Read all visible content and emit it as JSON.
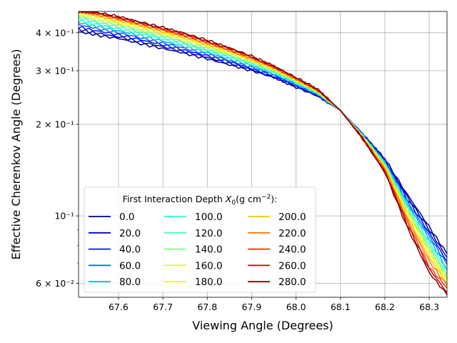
{
  "chart_data": {
    "type": "line",
    "title": "",
    "xlabel": "Viewing Angle (Degrees)",
    "ylabel": "Effective Cherenkov Angle (Degrees)",
    "xlim": [
      67.51,
      68.34
    ],
    "ylim": [
      0.054,
      0.47
    ],
    "yscale": "log",
    "grid": true,
    "x_ticks": [
      "67.6",
      "67.7",
      "67.8",
      "67.9",
      "68.0",
      "68.1",
      "68.2",
      "68.3"
    ],
    "y_major_ticks": [
      "6 × 10⁻²",
      "10⁻¹",
      "2 × 10⁻¹",
      "3 × 10⁻¹",
      "4 × 10⁻¹"
    ],
    "legend": {
      "title": "First Interaction Depth X₀(g cm⁻²):",
      "title_prefix": "First Interaction Depth ",
      "title_var": "X",
      "title_sub": "0",
      "title_paren": "(g cm",
      "title_sup": "−2",
      "title_suffix": "):",
      "placement": "lower-left",
      "ncol": 3
    },
    "x": [
      67.51,
      67.55,
      67.6,
      67.65,
      67.7,
      67.75,
      67.8,
      67.85,
      67.9,
      67.95,
      68.0,
      68.05,
      68.1,
      68.15,
      68.2,
      68.25,
      68.3,
      68.34
    ],
    "series": [
      {
        "name": "0.0",
        "color": "#00007f",
        "values": [
          0.403,
          0.393,
          0.383,
          0.368,
          0.355,
          0.342,
          0.328,
          0.314,
          0.3,
          0.285,
          0.265,
          0.247,
          0.222,
          0.186,
          0.154,
          0.118,
          0.092,
          0.075
        ]
      },
      {
        "name": "20.0",
        "color": "#0000c8",
        "values": [
          0.41,
          0.399,
          0.388,
          0.373,
          0.36,
          0.346,
          0.332,
          0.317,
          0.302,
          0.286,
          0.266,
          0.248,
          0.222,
          0.186,
          0.153,
          0.116,
          0.09,
          0.073
        ]
      },
      {
        "name": "40.0",
        "color": "#0010ff",
        "values": [
          0.418,
          0.406,
          0.394,
          0.379,
          0.365,
          0.35,
          0.336,
          0.321,
          0.305,
          0.289,
          0.268,
          0.249,
          0.222,
          0.185,
          0.152,
          0.114,
          0.088,
          0.071
        ]
      },
      {
        "name": "60.0",
        "color": "#0060ff",
        "values": [
          0.425,
          0.413,
          0.4,
          0.385,
          0.37,
          0.355,
          0.34,
          0.324,
          0.308,
          0.291,
          0.27,
          0.25,
          0.222,
          0.185,
          0.151,
          0.112,
          0.086,
          0.069
        ]
      },
      {
        "name": "80.0",
        "color": "#00b0ff",
        "values": [
          0.432,
          0.42,
          0.406,
          0.391,
          0.375,
          0.36,
          0.344,
          0.328,
          0.311,
          0.293,
          0.272,
          0.251,
          0.222,
          0.184,
          0.15,
          0.11,
          0.084,
          0.067
        ]
      },
      {
        "name": "100.0",
        "color": "#29ffce",
        "values": [
          0.44,
          0.427,
          0.412,
          0.397,
          0.381,
          0.365,
          0.348,
          0.332,
          0.314,
          0.296,
          0.273,
          0.252,
          0.222,
          0.184,
          0.149,
          0.108,
          0.082,
          0.066
        ]
      },
      {
        "name": "120.0",
        "color": "#46ffb1",
        "values": [
          0.447,
          0.433,
          0.418,
          0.402,
          0.386,
          0.369,
          0.352,
          0.335,
          0.317,
          0.298,
          0.275,
          0.253,
          0.222,
          0.183,
          0.148,
          0.107,
          0.08,
          0.064
        ]
      },
      {
        "name": "140.0",
        "color": "#7dff7a",
        "values": [
          0.453,
          0.439,
          0.424,
          0.407,
          0.39,
          0.373,
          0.356,
          0.338,
          0.32,
          0.3,
          0.277,
          0.254,
          0.222,
          0.183,
          0.147,
          0.105,
          0.078,
          0.063
        ]
      },
      {
        "name": "160.0",
        "color": "#ceff29",
        "values": [
          0.459,
          0.445,
          0.429,
          0.412,
          0.395,
          0.378,
          0.36,
          0.342,
          0.322,
          0.302,
          0.278,
          0.255,
          0.222,
          0.182,
          0.146,
          0.104,
          0.077,
          0.062
        ]
      },
      {
        "name": "180.0",
        "color": "#f4f802",
        "values": [
          0.465,
          0.451,
          0.434,
          0.417,
          0.4,
          0.382,
          0.363,
          0.345,
          0.325,
          0.304,
          0.279,
          0.256,
          0.222,
          0.182,
          0.145,
          0.102,
          0.075,
          0.061
        ]
      },
      {
        "name": "200.0",
        "color": "#ffc400",
        "values": [
          0.468,
          0.455,
          0.438,
          0.421,
          0.403,
          0.385,
          0.366,
          0.347,
          0.327,
          0.305,
          0.28,
          0.257,
          0.222,
          0.181,
          0.144,
          0.1,
          0.073,
          0.06
        ]
      },
      {
        "name": "220.0",
        "color": "#ff7a00",
        "values": [
          0.47,
          0.459,
          0.442,
          0.425,
          0.407,
          0.389,
          0.369,
          0.35,
          0.329,
          0.307,
          0.282,
          0.258,
          0.222,
          0.181,
          0.143,
          0.098,
          0.071,
          0.059
        ]
      },
      {
        "name": "240.0",
        "color": "#ff3000",
        "values": [
          0.47,
          0.462,
          0.446,
          0.428,
          0.41,
          0.392,
          0.372,
          0.352,
          0.331,
          0.308,
          0.283,
          0.259,
          0.222,
          0.18,
          0.141,
          0.096,
          0.068,
          0.058
        ]
      },
      {
        "name": "260.0",
        "color": "#c80000",
        "values": [
          0.47,
          0.465,
          0.449,
          0.431,
          0.413,
          0.395,
          0.375,
          0.355,
          0.333,
          0.31,
          0.284,
          0.259,
          0.222,
          0.18,
          0.14,
          0.094,
          0.067,
          0.056
        ]
      },
      {
        "name": "280.0",
        "color": "#7f0000",
        "values": [
          0.47,
          0.467,
          0.452,
          0.434,
          0.416,
          0.398,
          0.378,
          0.357,
          0.335,
          0.311,
          0.285,
          0.26,
          0.222,
          0.179,
          0.139,
          0.092,
          0.065,
          0.055
        ]
      }
    ]
  }
}
